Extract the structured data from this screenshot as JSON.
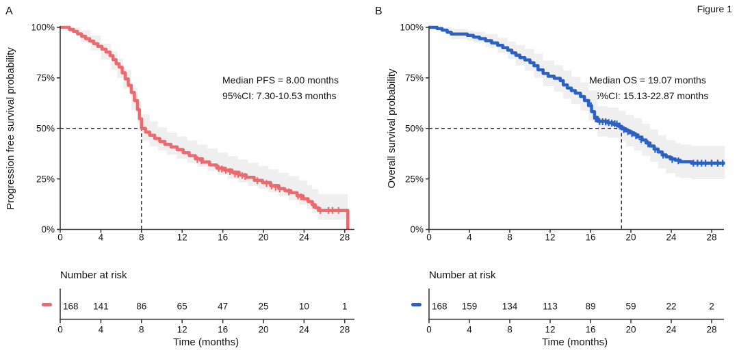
{
  "figure_label": "Figure 1",
  "chart_data": [
    {
      "type": "line",
      "subtype": "kaplan_meier_step",
      "panel_label": "A",
      "title": "",
      "ylabel": "Progression free survival probability",
      "xlabel": "Time (months)",
      "annotation": {
        "median": "Median PFS = 8.00 months",
        "ci": "95%CI: 7.30-10.53 months"
      },
      "median_months": 8.0,
      "median_ci_months": [
        7.3,
        10.53
      ],
      "color": "#ec696d",
      "ci_band_color": "#efefef",
      "grid": false,
      "legend": "none",
      "xlim": [
        0,
        29
      ],
      "ylim_pct": [
        0,
        100
      ],
      "x_ticks": [
        0,
        4,
        8,
        12,
        16,
        20,
        24,
        28
      ],
      "y_tick_pcts": [
        0,
        25,
        50,
        75,
        100
      ],
      "y_tick_labels": [
        "0%",
        "25%",
        "50%",
        "75%",
        "100%"
      ],
      "survival_curve_pct": [
        [
          0,
          100
        ],
        [
          0.9,
          99
        ],
        [
          1.3,
          98
        ],
        [
          1.7,
          96.8
        ],
        [
          2.1,
          95.6
        ],
        [
          2.5,
          94.4
        ],
        [
          2.9,
          93.2
        ],
        [
          3.3,
          91.9
        ],
        [
          3.7,
          90.6
        ],
        [
          4.1,
          89.2
        ],
        [
          4.5,
          87.8
        ],
        [
          4.9,
          86
        ],
        [
          5.2,
          84
        ],
        [
          5.5,
          82
        ],
        [
          5.8,
          80.3
        ],
        [
          6.1,
          77.5
        ],
        [
          6.4,
          74.5
        ],
        [
          6.7,
          71.3
        ],
        [
          7.0,
          67.8
        ],
        [
          7.3,
          63.8
        ],
        [
          7.6,
          59.3
        ],
        [
          7.8,
          54.8
        ],
        [
          8.0,
          50
        ],
        [
          8.4,
          48.2
        ],
        [
          8.8,
          46.6
        ],
        [
          9.3,
          45
        ],
        [
          9.8,
          43.5
        ],
        [
          10.3,
          42.1
        ],
        [
          10.9,
          40.8
        ],
        [
          11.5,
          39.5
        ],
        [
          12.1,
          38
        ],
        [
          12.7,
          36.5
        ],
        [
          13.3,
          35
        ],
        [
          14.0,
          33.4
        ],
        [
          14.7,
          31.9
        ],
        [
          15.4,
          30.4
        ],
        [
          16.1,
          29.4
        ],
        [
          16.9,
          28.3
        ],
        [
          17.6,
          27
        ],
        [
          18.3,
          25.8
        ],
        [
          19.1,
          24.3
        ],
        [
          19.9,
          23.2
        ],
        [
          20.7,
          21.7
        ],
        [
          21.5,
          20.2
        ],
        [
          22.1,
          19.2
        ],
        [
          22.7,
          18.2
        ],
        [
          23.3,
          16.7
        ],
        [
          23.9,
          15.2
        ],
        [
          24.4,
          13.8
        ],
        [
          24.8,
          12.2
        ],
        [
          25.1,
          10.8
        ],
        [
          25.4,
          9.4
        ],
        [
          28.3,
          9.4
        ],
        [
          28.3,
          0
        ]
      ],
      "censor_marks_pct": [
        [
          13.5,
          34.6
        ],
        [
          13.9,
          33.9
        ],
        [
          15.6,
          30.2
        ],
        [
          15.9,
          29.9
        ],
        [
          16.3,
          29.3
        ],
        [
          16.7,
          28.6
        ],
        [
          17.2,
          27.5
        ],
        [
          17.5,
          27.2
        ],
        [
          17.9,
          26.7
        ],
        [
          18.2,
          26.2
        ],
        [
          19.4,
          24.1
        ],
        [
          20.3,
          22.7
        ],
        [
          20.8,
          21.6
        ],
        [
          21.2,
          20.9
        ],
        [
          21.6,
          20.1
        ],
        [
          22.5,
          18.6
        ],
        [
          23.4,
          16.6
        ],
        [
          23.7,
          16.1
        ],
        [
          24.9,
          12.1
        ],
        [
          25.6,
          9.4
        ],
        [
          26.4,
          9.4
        ],
        [
          26.8,
          9.4
        ],
        [
          27.4,
          9.4
        ]
      ],
      "ci_upper_pct": [
        [
          0,
          100
        ],
        [
          1.2,
          100
        ],
        [
          2,
          98.6
        ],
        [
          3,
          96
        ],
        [
          4,
          92
        ],
        [
          5,
          88.2
        ],
        [
          5.6,
          84.5
        ],
        [
          6.2,
          79
        ],
        [
          7,
          70
        ],
        [
          7.6,
          63
        ],
        [
          8,
          57
        ],
        [
          8.8,
          53.5
        ],
        [
          9.6,
          50.5
        ],
        [
          10.5,
          48
        ],
        [
          11.5,
          46
        ],
        [
          12.5,
          44
        ],
        [
          13.5,
          42
        ],
        [
          14.5,
          40
        ],
        [
          15.5,
          38
        ],
        [
          16.5,
          36.3
        ],
        [
          17.5,
          34.6
        ],
        [
          18.5,
          33
        ],
        [
          19.5,
          31.4
        ],
        [
          20.5,
          29.8
        ],
        [
          21.5,
          28
        ],
        [
          22.5,
          26.4
        ],
        [
          23.5,
          24.3
        ],
        [
          24.3,
          22
        ],
        [
          24.8,
          20
        ],
        [
          25.4,
          17.5
        ],
        [
          28.3,
          17.5
        ]
      ],
      "ci_lower_pct": [
        [
          0,
          100
        ],
        [
          0.9,
          97.5
        ],
        [
          2,
          92.6
        ],
        [
          3,
          88.6
        ],
        [
          4,
          84
        ],
        [
          5,
          79
        ],
        [
          5.6,
          75
        ],
        [
          6.2,
          69.5
        ],
        [
          7,
          59
        ],
        [
          7.6,
          51.5
        ],
        [
          8,
          44
        ],
        [
          8.8,
          41
        ],
        [
          9.6,
          39
        ],
        [
          10.5,
          37
        ],
        [
          11.5,
          35
        ],
        [
          12.5,
          33
        ],
        [
          13.5,
          31
        ],
        [
          14.5,
          29
        ],
        [
          15.5,
          27
        ],
        [
          16.5,
          25
        ],
        [
          17.5,
          23.2
        ],
        [
          18.5,
          21.5
        ],
        [
          19.5,
          20
        ],
        [
          20.5,
          18.3
        ],
        [
          21.5,
          16.5
        ],
        [
          22.5,
          14.5
        ],
        [
          23.5,
          12.2
        ],
        [
          24.3,
          10
        ],
        [
          24.8,
          8
        ],
        [
          25.4,
          4.8
        ],
        [
          28.3,
          4.8
        ]
      ],
      "number_at_risk": {
        "title": "Number at risk",
        "times": [
          0,
          4,
          8,
          12,
          16,
          20,
          24,
          28
        ],
        "counts": [
          168,
          141,
          86,
          65,
          47,
          25,
          10,
          1
        ]
      }
    },
    {
      "type": "line",
      "subtype": "kaplan_meier_step",
      "panel_label": "B",
      "title": "",
      "ylabel": "Overall survival probability",
      "xlabel": "Time (months)",
      "annotation": {
        "median": "Median OS = 19.07 months",
        "ci": "95%CI: 15.13-22.87 months"
      },
      "median_months": 19.07,
      "median_ci_months": [
        15.13,
        22.87
      ],
      "color": "#2a61c2",
      "ci_band_color": "#efefef",
      "grid": false,
      "legend": "none",
      "xlim": [
        0,
        29.5
      ],
      "ylim_pct": [
        0,
        100
      ],
      "x_ticks": [
        0,
        4,
        8,
        12,
        16,
        20,
        24,
        28
      ],
      "y_tick_pcts": [
        0,
        25,
        50,
        75,
        100
      ],
      "y_tick_labels": [
        "0%",
        "25%",
        "50%",
        "75%",
        "100%"
      ],
      "survival_curve_pct": [
        [
          0,
          100
        ],
        [
          0.8,
          99.4
        ],
        [
          1.3,
          98.6
        ],
        [
          1.8,
          97.6
        ],
        [
          2.2,
          96.7
        ],
        [
          3.8,
          96
        ],
        [
          4.4,
          95.2
        ],
        [
          5.0,
          94.4
        ],
        [
          5.6,
          93.4
        ],
        [
          6.2,
          92.3
        ],
        [
          6.8,
          91.1
        ],
        [
          7.3,
          89.9
        ],
        [
          7.8,
          88.7
        ],
        [
          8.2,
          87.4
        ],
        [
          8.6,
          86.2
        ],
        [
          9.0,
          85
        ],
        [
          9.5,
          83.9
        ],
        [
          10.0,
          82.5
        ],
        [
          10.4,
          81
        ],
        [
          10.8,
          79
        ],
        [
          11.3,
          77.2
        ],
        [
          11.8,
          75.8
        ],
        [
          12.4,
          74.8
        ],
        [
          13.0,
          73.6
        ],
        [
          13.3,
          71.5
        ],
        [
          13.7,
          70
        ],
        [
          14.1,
          68.7
        ],
        [
          14.5,
          67.4
        ],
        [
          15.0,
          65.8
        ],
        [
          15.4,
          63.8
        ],
        [
          15.8,
          61.3
        ],
        [
          16.1,
          58.3
        ],
        [
          16.4,
          55.4
        ],
        [
          16.7,
          53.5
        ],
        [
          17.7,
          52.8
        ],
        [
          18.3,
          52
        ],
        [
          18.8,
          51
        ],
        [
          19.1,
          49.8
        ],
        [
          19.5,
          48.8
        ],
        [
          19.9,
          47.8
        ],
        [
          20.3,
          46.8
        ],
        [
          20.7,
          45.7
        ],
        [
          21.1,
          44.3
        ],
        [
          21.5,
          42.8
        ],
        [
          21.9,
          41.3
        ],
        [
          22.3,
          39.8
        ],
        [
          22.7,
          38.3
        ],
        [
          23.1,
          36.9
        ],
        [
          23.5,
          35.9
        ],
        [
          23.9,
          34.9
        ],
        [
          24.4,
          34.2
        ],
        [
          24.9,
          33.5
        ],
        [
          26.0,
          32.8
        ],
        [
          29.3,
          32.8
        ]
      ],
      "censor_marks_pct": [
        [
          15.9,
          62.5
        ],
        [
          16.5,
          54.8
        ],
        [
          16.9,
          53.4
        ],
        [
          17.2,
          53.3
        ],
        [
          17.5,
          53.2
        ],
        [
          17.8,
          52.9
        ],
        [
          18.1,
          52.6
        ],
        [
          18.4,
          52.3
        ],
        [
          18.6,
          52.1
        ],
        [
          18.9,
          51.1
        ],
        [
          19.3,
          49.4
        ],
        [
          19.7,
          48.4
        ],
        [
          20.1,
          47.4
        ],
        [
          20.5,
          46.4
        ],
        [
          21.0,
          44.5
        ],
        [
          21.7,
          42.4
        ],
        [
          22.4,
          39.6
        ],
        [
          23.2,
          36.8
        ],
        [
          24.1,
          34.6
        ],
        [
          24.7,
          33.9
        ],
        [
          26.2,
          32.8
        ],
        [
          26.6,
          32.8
        ],
        [
          27.0,
          32.8
        ],
        [
          27.4,
          32.8
        ],
        [
          28.0,
          32.8
        ],
        [
          28.6,
          32.8
        ],
        [
          29.1,
          32.8
        ]
      ],
      "ci_upper_pct": [
        [
          0,
          100
        ],
        [
          1.2,
          100
        ],
        [
          2.2,
          99.3
        ],
        [
          3.8,
          98.4
        ],
        [
          4.4,
          97.8
        ],
        [
          5.6,
          96.6
        ],
        [
          6.8,
          94.8
        ],
        [
          7.8,
          93
        ],
        [
          8.6,
          91.2
        ],
        [
          9.5,
          89.3
        ],
        [
          10.4,
          87
        ],
        [
          11.3,
          83.6
        ],
        [
          12.4,
          81.3
        ],
        [
          13.3,
          78.6
        ],
        [
          14.1,
          75.5
        ],
        [
          15.0,
          72.8
        ],
        [
          15.8,
          68.8
        ],
        [
          16.7,
          61
        ],
        [
          17.7,
          60.3
        ],
        [
          18.8,
          58.6
        ],
        [
          19.5,
          56.8
        ],
        [
          20.3,
          55
        ],
        [
          21.1,
          52.3
        ],
        [
          21.9,
          49.5
        ],
        [
          22.7,
          46.6
        ],
        [
          23.5,
          44.2
        ],
        [
          24.4,
          42.7
        ],
        [
          24.9,
          42
        ],
        [
          26.0,
          41.3
        ],
        [
          29.3,
          41.3
        ]
      ],
      "ci_lower_pct": [
        [
          0,
          100
        ],
        [
          0.8,
          98.2
        ],
        [
          2.2,
          94.1
        ],
        [
          3.8,
          93.3
        ],
        [
          4.4,
          92.4
        ],
        [
          5.6,
          90.1
        ],
        [
          6.8,
          87.4
        ],
        [
          7.8,
          84.4
        ],
        [
          8.6,
          81.2
        ],
        [
          9.5,
          78.5
        ],
        [
          10.4,
          75
        ],
        [
          11.3,
          70.8
        ],
        [
          12.4,
          68.2
        ],
        [
          13.3,
          64.6
        ],
        [
          14.1,
          62
        ],
        [
          15.0,
          58.8
        ],
        [
          15.8,
          53.8
        ],
        [
          16.7,
          46
        ],
        [
          17.7,
          45.3
        ],
        [
          18.8,
          43.6
        ],
        [
          19.5,
          41
        ],
        [
          20.3,
          39
        ],
        [
          21.1,
          36.4
        ],
        [
          21.9,
          33.4
        ],
        [
          22.7,
          30.2
        ],
        [
          23.5,
          27.8
        ],
        [
          24.4,
          26
        ],
        [
          24.9,
          25.5
        ],
        [
          26.0,
          24.8
        ],
        [
          29.3,
          24.8
        ]
      ],
      "number_at_risk": {
        "title": "Number at risk",
        "times": [
          0,
          4,
          8,
          12,
          16,
          20,
          24,
          28
        ],
        "counts": [
          168,
          159,
          134,
          113,
          89,
          59,
          22,
          2
        ]
      }
    }
  ]
}
